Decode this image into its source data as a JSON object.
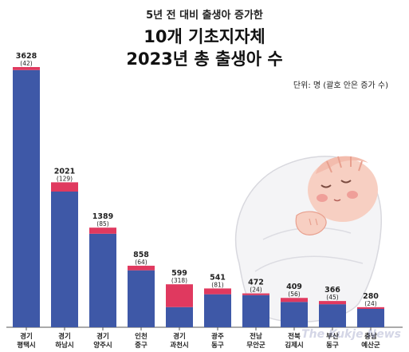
{
  "subtitle": "5년 전 대비 출생아 증가한",
  "title_line1": "10개 기초지자체",
  "title_line2": "2023년 총 출생아 수",
  "unit_note": "단위: 명 (괄호 안은 증가 수)",
  "watermark": "The Kukje News",
  "colors": {
    "base": "#3e58a7",
    "increase": "#e0395f",
    "axis": "#555555",
    "text": "#222222"
  },
  "illustration": "baby-wrapped-in-blanket",
  "chart_data": {
    "type": "bar",
    "stacked": true,
    "categories": [
      [
        "경기",
        "평택시"
      ],
      [
        "경기",
        "하남시"
      ],
      [
        "경기",
        "양주시"
      ],
      [
        "인천",
        "중구"
      ],
      [
        "경기",
        "과천시"
      ],
      [
        "광주",
        "동구"
      ],
      [
        "전남",
        "무안군"
      ],
      [
        "전북",
        "김제시"
      ],
      [
        "부산",
        "동구"
      ],
      [
        "충남",
        "예산군"
      ]
    ],
    "totals": [
      3628,
      2021,
      1389,
      858,
      599,
      541,
      472,
      409,
      366,
      280
    ],
    "increases": [
      42,
      129,
      85,
      64,
      318,
      81,
      24,
      56,
      45,
      24
    ],
    "total_labels": [
      "3628",
      "2021",
      "1389",
      "858",
      "599",
      "541",
      "472",
      "409",
      "366",
      "280"
    ],
    "increase_labels": [
      "(42)",
      "(129)",
      "(85)",
      "(64)",
      "(318)",
      "(81)",
      "(24)",
      "(56)",
      "(45)",
      "(24)"
    ],
    "ylim": [
      0,
      3628
    ],
    "grid": false,
    "legend": "none"
  }
}
